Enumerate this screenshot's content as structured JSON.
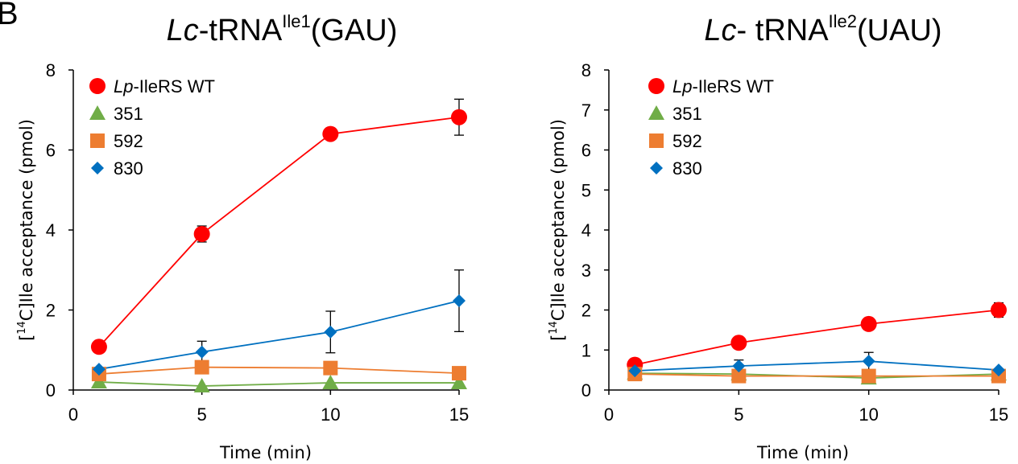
{
  "panel_label": "B",
  "chart_data": [
    {
      "type": "line",
      "title": {
        "italic": "Lc",
        "main": "-tRNA",
        "sup": "Ile1",
        "suffix": "(GAU)"
      },
      "xlabel": "Time (min)",
      "ylabel": {
        "pre": "[",
        "sup": "14",
        "post": "C]Ile acceptance (pmol)"
      },
      "xlim": [
        0,
        15
      ],
      "ylim": [
        0,
        8
      ],
      "xticks": [
        0,
        5,
        10,
        15
      ],
      "yticks": [
        0,
        2,
        4,
        6,
        8
      ],
      "x": [
        1,
        5,
        10,
        15
      ],
      "series": [
        {
          "name_italic": "Lp",
          "name": "-IleRS WT",
          "color": "#ff0000",
          "marker": "circle",
          "values": [
            1.08,
            3.9,
            6.4,
            6.82
          ],
          "errors": [
            0.0,
            0.2,
            0.05,
            0.45
          ]
        },
        {
          "name_italic": "",
          "name": "351",
          "color": "#70ad47",
          "marker": "triangle",
          "values": [
            0.2,
            0.1,
            0.18,
            0.18
          ],
          "errors": [
            0.0,
            0.0,
            0.0,
            0.0
          ]
        },
        {
          "name_italic": "",
          "name": "592",
          "color": "#ed7d31",
          "marker": "square",
          "values": [
            0.4,
            0.57,
            0.55,
            0.42
          ],
          "errors": [
            0.0,
            0.0,
            0.0,
            0.0
          ]
        },
        {
          "name_italic": "",
          "name": "830",
          "color": "#0070c0",
          "marker": "diamond",
          "values": [
            0.52,
            0.95,
            1.45,
            2.23
          ],
          "errors": [
            0.0,
            0.27,
            0.52,
            0.77
          ]
        }
      ]
    },
    {
      "type": "line",
      "title": {
        "italic": "Lc",
        "main": "- tRNA",
        "sup": "Ile2",
        "suffix": "(UAU)"
      },
      "xlabel": "Time (min)",
      "ylabel": {
        "pre": "[",
        "sup": "14",
        "post": "C]Ile acceptance (pmol)"
      },
      "xlim": [
        0,
        15
      ],
      "ylim": [
        0,
        8
      ],
      "xticks": [
        0,
        5,
        10,
        15
      ],
      "yticks": [
        0,
        1,
        2,
        3,
        4,
        5,
        6,
        7,
        8
      ],
      "x": [
        1,
        5,
        10,
        15
      ],
      "series": [
        {
          "name_italic": "Lp",
          "name": "-IleRS WT",
          "color": "#ff0000",
          "marker": "circle",
          "values": [
            0.63,
            1.18,
            1.65,
            2.0
          ],
          "errors": [
            0.0,
            0.0,
            0.0,
            0.18
          ]
        },
        {
          "name_italic": "",
          "name": "351",
          "color": "#70ad47",
          "marker": "triangle",
          "values": [
            0.42,
            0.4,
            0.3,
            0.4
          ],
          "errors": [
            0.0,
            0.0,
            0.0,
            0.0
          ]
        },
        {
          "name_italic": "",
          "name": "592",
          "color": "#ed7d31",
          "marker": "square",
          "values": [
            0.4,
            0.35,
            0.35,
            0.35
          ],
          "errors": [
            0.0,
            0.0,
            0.0,
            0.0
          ]
        },
        {
          "name_italic": "",
          "name": "830",
          "color": "#0070c0",
          "marker": "diamond",
          "values": [
            0.48,
            0.6,
            0.72,
            0.5
          ],
          "errors": [
            0.0,
            0.15,
            0.22,
            0.0
          ]
        }
      ]
    }
  ]
}
